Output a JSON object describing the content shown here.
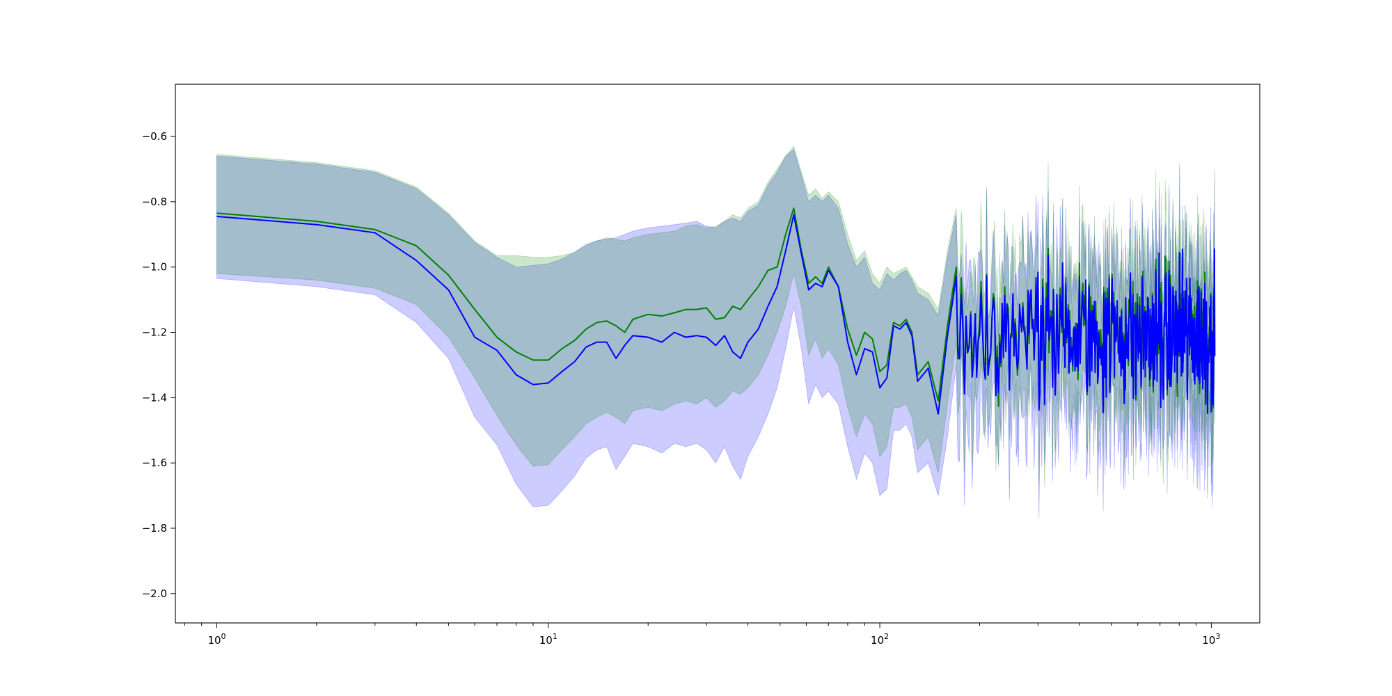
{
  "chart_data": {
    "type": "line",
    "title": "",
    "xlabel": "",
    "ylabel": "",
    "xscale": "log",
    "xlim": [
      0.75,
      1400
    ],
    "ylim": [
      -2.09,
      -0.44
    ],
    "grid": false,
    "legend": "none",
    "x_ticks": [
      {
        "value": 1,
        "base": "10",
        "exp": "0"
      },
      {
        "value": 10,
        "base": "10",
        "exp": "1"
      },
      {
        "value": 100,
        "base": "10",
        "exp": "2"
      },
      {
        "value": 1000,
        "base": "10",
        "exp": "3"
      }
    ],
    "y_ticks": [
      {
        "value": -0.6,
        "label": "−0.6"
      },
      {
        "value": -0.8,
        "label": "−0.8"
      },
      {
        "value": -1.0,
        "label": "−1.0"
      },
      {
        "value": -1.2,
        "label": "−1.2"
      },
      {
        "value": -1.4,
        "label": "−1.4"
      },
      {
        "value": -1.6,
        "label": "−1.6"
      },
      {
        "value": -1.8,
        "label": "−1.8"
      },
      {
        "value": -2.0,
        "label": "−2.0"
      }
    ],
    "series": [
      {
        "color": "#008000",
        "band_color": "#008000",
        "band_opacity": 0.2,
        "x": [
          1,
          2,
          3,
          4,
          5,
          6,
          7,
          8,
          9,
          10,
          11,
          12,
          13,
          14,
          15,
          16,
          17,
          18,
          20,
          22,
          24,
          26,
          28,
          30,
          32,
          34,
          36,
          38,
          40,
          43,
          46,
          49,
          52,
          55,
          58,
          61,
          64,
          67,
          70,
          75,
          80,
          85,
          90,
          95,
          100,
          105,
          110,
          115,
          120,
          125,
          130,
          140,
          150,
          160,
          170
        ],
        "mean": [
          -0.835,
          -0.86,
          -0.885,
          -0.935,
          -1.025,
          -1.13,
          -1.215,
          -1.26,
          -1.285,
          -1.285,
          -1.25,
          -1.225,
          -1.19,
          -1.17,
          -1.165,
          -1.18,
          -1.2,
          -1.16,
          -1.145,
          -1.15,
          -1.14,
          -1.13,
          -1.13,
          -1.125,
          -1.16,
          -1.155,
          -1.12,
          -1.13,
          -1.1,
          -1.06,
          -1.01,
          -1.0,
          -0.9,
          -0.82,
          -0.95,
          -1.05,
          -1.03,
          -1.05,
          -1.0,
          -1.06,
          -1.19,
          -1.27,
          -1.2,
          -1.22,
          -1.32,
          -1.3,
          -1.17,
          -1.18,
          -1.16,
          -1.2,
          -1.33,
          -1.29,
          -1.41,
          -1.18,
          -1.0
        ],
        "upper": [
          -0.655,
          -0.68,
          -0.705,
          -0.755,
          -0.835,
          -0.92,
          -0.965,
          -0.965,
          -0.97,
          -0.97,
          -0.965,
          -0.955,
          -0.935,
          -0.92,
          -0.91,
          -0.915,
          -0.92,
          -0.91,
          -0.9,
          -0.895,
          -0.89,
          -0.875,
          -0.87,
          -0.88,
          -0.875,
          -0.86,
          -0.84,
          -0.85,
          -0.82,
          -0.8,
          -0.74,
          -0.7,
          -0.66,
          -0.63,
          -0.71,
          -0.78,
          -0.76,
          -0.79,
          -0.77,
          -0.8,
          -0.9,
          -0.98,
          -0.95,
          -1.02,
          -1.05,
          -1.0,
          -1.02,
          -1.01,
          -1.0,
          -1.03,
          -1.06,
          -1.08,
          -1.13,
          -0.95,
          -0.82
        ],
        "lower": [
          -1.02,
          -1.04,
          -1.065,
          -1.115,
          -1.215,
          -1.34,
          -1.455,
          -1.545,
          -1.61,
          -1.605,
          -1.56,
          -1.52,
          -1.48,
          -1.46,
          -1.445,
          -1.46,
          -1.48,
          -1.44,
          -1.43,
          -1.44,
          -1.42,
          -1.41,
          -1.42,
          -1.4,
          -1.43,
          -1.41,
          -1.38,
          -1.39,
          -1.37,
          -1.33,
          -1.27,
          -1.2,
          -1.12,
          -1.02,
          -1.12,
          -1.27,
          -1.22,
          -1.28,
          -1.25,
          -1.3,
          -1.43,
          -1.52,
          -1.45,
          -1.48,
          -1.58,
          -1.55,
          -1.43,
          -1.43,
          -1.42,
          -1.46,
          -1.56,
          -1.52,
          -1.63,
          -1.42,
          -1.23
        ]
      },
      {
        "color": "#0000ff",
        "band_color": "#0000ff",
        "band_opacity": 0.2,
        "x": [
          1,
          2,
          3,
          4,
          5,
          6,
          7,
          8,
          9,
          10,
          11,
          12,
          13,
          14,
          15,
          16,
          17,
          18,
          20,
          22,
          24,
          26,
          28,
          30,
          32,
          34,
          36,
          38,
          40,
          43,
          46,
          49,
          52,
          55,
          58,
          61,
          64,
          67,
          70,
          75,
          80,
          85,
          90,
          95,
          100,
          105,
          110,
          115,
          120,
          125,
          130,
          140,
          150,
          160,
          170
        ],
        "mean": [
          -0.845,
          -0.87,
          -0.895,
          -0.98,
          -1.07,
          -1.215,
          -1.255,
          -1.33,
          -1.36,
          -1.355,
          -1.32,
          -1.29,
          -1.245,
          -1.23,
          -1.23,
          -1.28,
          -1.24,
          -1.21,
          -1.215,
          -1.23,
          -1.2,
          -1.215,
          -1.21,
          -1.215,
          -1.24,
          -1.21,
          -1.26,
          -1.28,
          -1.23,
          -1.19,
          -1.12,
          -1.06,
          -0.95,
          -0.84,
          -0.96,
          -1.07,
          -1.05,
          -1.06,
          -1.01,
          -1.06,
          -1.23,
          -1.33,
          -1.25,
          -1.26,
          -1.37,
          -1.34,
          -1.18,
          -1.19,
          -1.17,
          -1.21,
          -1.35,
          -1.31,
          -1.45,
          -1.21,
          -1.03
        ],
        "upper": [
          -0.66,
          -0.685,
          -0.71,
          -0.76,
          -0.84,
          -0.925,
          -0.97,
          -1.0,
          -0.995,
          -0.99,
          -0.975,
          -0.955,
          -0.93,
          -0.92,
          -0.915,
          -0.91,
          -0.9,
          -0.89,
          -0.88,
          -0.875,
          -0.87,
          -0.865,
          -0.86,
          -0.875,
          -0.88,
          -0.86,
          -0.85,
          -0.86,
          -0.83,
          -0.81,
          -0.75,
          -0.71,
          -0.66,
          -0.64,
          -0.72,
          -0.8,
          -0.78,
          -0.8,
          -0.78,
          -0.82,
          -0.93,
          -1.0,
          -0.97,
          -1.05,
          -1.07,
          -1.02,
          -1.04,
          -1.02,
          -1.01,
          -1.04,
          -1.08,
          -1.1,
          -1.15,
          -0.97,
          -0.84
        ],
        "lower": [
          -1.035,
          -1.06,
          -1.085,
          -1.17,
          -1.28,
          -1.46,
          -1.545,
          -1.665,
          -1.735,
          -1.73,
          -1.685,
          -1.64,
          -1.585,
          -1.56,
          -1.55,
          -1.62,
          -1.58,
          -1.54,
          -1.55,
          -1.57,
          -1.54,
          -1.55,
          -1.54,
          -1.56,
          -1.6,
          -1.55,
          -1.61,
          -1.65,
          -1.58,
          -1.52,
          -1.45,
          -1.37,
          -1.25,
          -1.12,
          -1.25,
          -1.42,
          -1.36,
          -1.4,
          -1.38,
          -1.42,
          -1.55,
          -1.65,
          -1.57,
          -1.6,
          -1.7,
          -1.68,
          -1.5,
          -1.5,
          -1.48,
          -1.52,
          -1.63,
          -1.6,
          -1.7,
          -1.52,
          -1.3
        ]
      }
    ],
    "noise_region": {
      "x_range": [
        170,
        1024
      ],
      "mean_center": -1.2,
      "mean_spread": 0.22,
      "band_halfwidth": 0.2,
      "y_min": -2.02,
      "y_max": -0.52
    }
  }
}
